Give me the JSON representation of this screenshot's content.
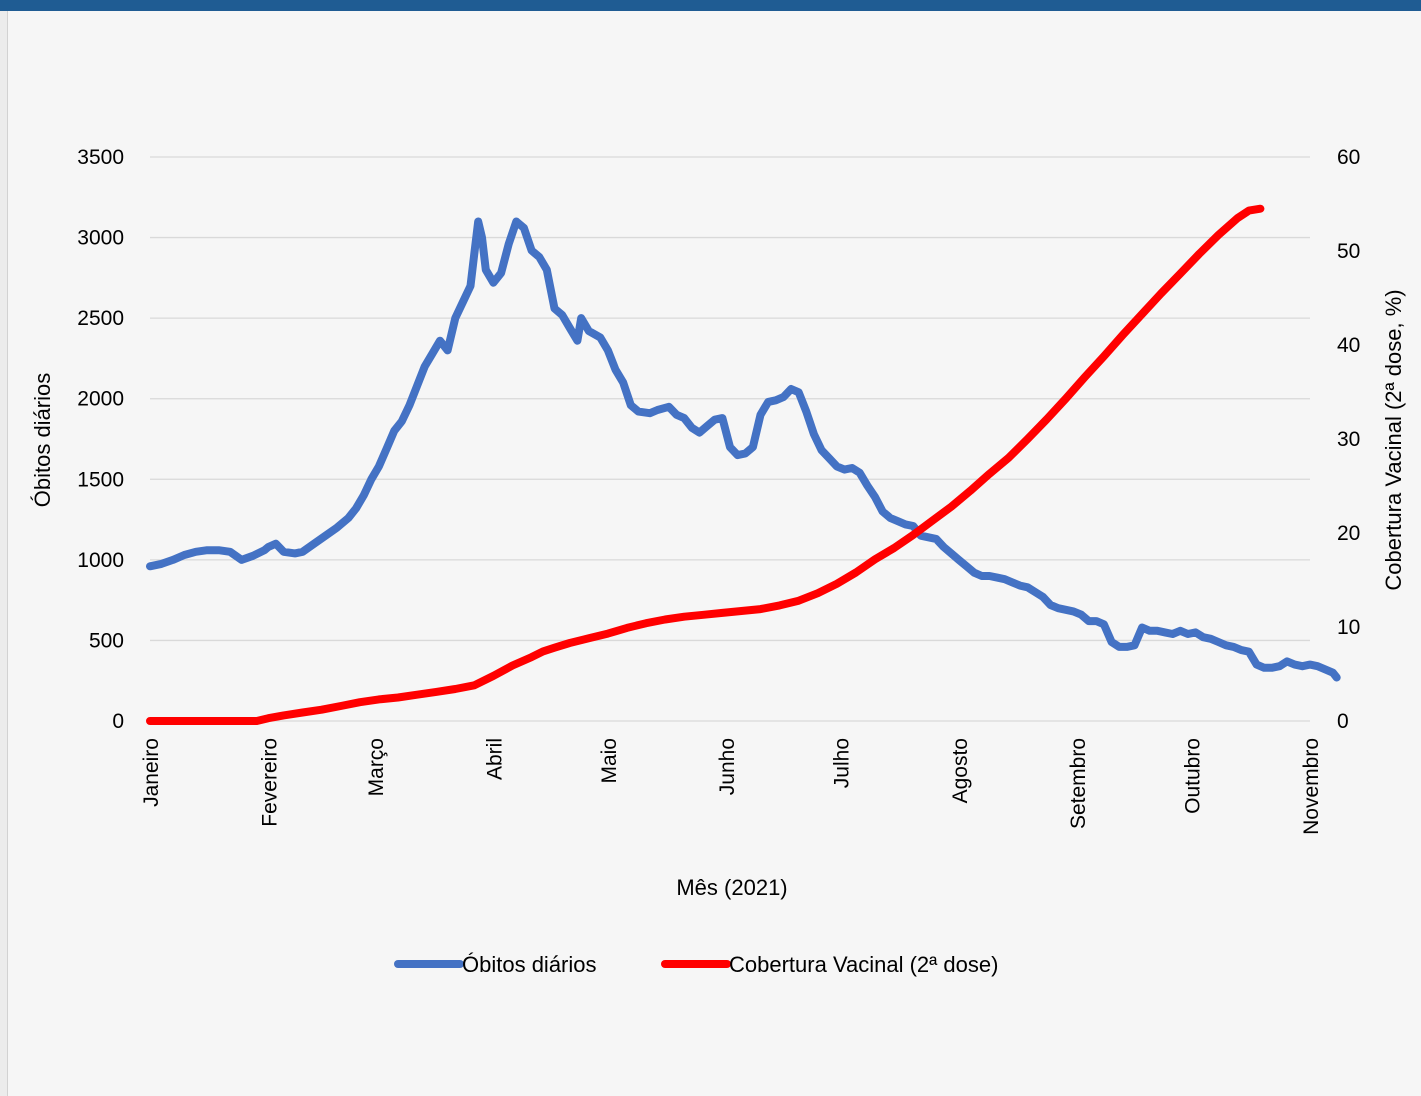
{
  "chart_data": {
    "type": "line",
    "title": "",
    "xlabel": "Mês (2021)",
    "ylabel": "Óbitos diários",
    "y2label": "Cobertura Vacinal (2ª dose, %)",
    "ylim": [
      0,
      3500
    ],
    "y2lim": [
      0,
      60
    ],
    "yticks": [
      0,
      500,
      1000,
      1500,
      2000,
      2500,
      3000,
      3500
    ],
    "y2ticks": [
      0,
      10,
      20,
      30,
      40,
      50,
      60
    ],
    "grid": true,
    "legend_position": "bottom",
    "months": [
      "Janeiro",
      "Fevereiro",
      "Março",
      "Abril",
      "Maio",
      "Junho",
      "Julho",
      "Agosto",
      "Setembro",
      "Outubro",
      "Novembro"
    ],
    "month_positions": [
      0,
      31,
      59,
      90,
      120,
      151,
      181,
      212,
      243,
      273,
      304
    ],
    "x_unit": "day of 2021 (0 = 1 January)",
    "series": [
      {
        "name": "Óbitos diários",
        "color": "#4472c4",
        "axis": "left",
        "points": [
          [
            0,
            960
          ],
          [
            3,
            975
          ],
          [
            6,
            1000
          ],
          [
            9,
            1030
          ],
          [
            12,
            1050
          ],
          [
            15,
            1060
          ],
          [
            18,
            1060
          ],
          [
            21,
            1050
          ],
          [
            24,
            1000
          ],
          [
            27,
            1025
          ],
          [
            30,
            1060
          ],
          [
            31,
            1080
          ],
          [
            33,
            1100
          ],
          [
            35,
            1050
          ],
          [
            38,
            1040
          ],
          [
            40,
            1050
          ],
          [
            43,
            1100
          ],
          [
            46,
            1150
          ],
          [
            49,
            1200
          ],
          [
            52,
            1260
          ],
          [
            54,
            1320
          ],
          [
            56,
            1400
          ],
          [
            58,
            1500
          ],
          [
            60,
            1580
          ],
          [
            62,
            1690
          ],
          [
            64,
            1800
          ],
          [
            66,
            1860
          ],
          [
            68,
            1960
          ],
          [
            70,
            2080
          ],
          [
            72,
            2200
          ],
          [
            74,
            2280
          ],
          [
            76,
            2360
          ],
          [
            78,
            2300
          ],
          [
            80,
            2500
          ],
          [
            82,
            2600
          ],
          [
            84,
            2700
          ],
          [
            85,
            2900
          ],
          [
            86,
            3100
          ],
          [
            87,
            3000
          ],
          [
            88,
            2800
          ],
          [
            90,
            2720
          ],
          [
            92,
            2780
          ],
          [
            94,
            2960
          ],
          [
            96,
            3100
          ],
          [
            98,
            3060
          ],
          [
            100,
            2920
          ],
          [
            102,
            2880
          ],
          [
            104,
            2800
          ],
          [
            106,
            2560
          ],
          [
            108,
            2520
          ],
          [
            110,
            2440
          ],
          [
            112,
            2360
          ],
          [
            113,
            2500
          ],
          [
            115,
            2420
          ],
          [
            118,
            2380
          ],
          [
            120,
            2300
          ],
          [
            122,
            2180
          ],
          [
            124,
            2100
          ],
          [
            126,
            1960
          ],
          [
            128,
            1920
          ],
          [
            131,
            1910
          ],
          [
            133,
            1930
          ],
          [
            136,
            1950
          ],
          [
            138,
            1900
          ],
          [
            140,
            1880
          ],
          [
            142,
            1820
          ],
          [
            144,
            1790
          ],
          [
            146,
            1830
          ],
          [
            148,
            1870
          ],
          [
            150,
            1880
          ],
          [
            152,
            1700
          ],
          [
            154,
            1650
          ],
          [
            156,
            1660
          ],
          [
            158,
            1700
          ],
          [
            160,
            1900
          ],
          [
            162,
            1980
          ],
          [
            164,
            1990
          ],
          [
            166,
            2010
          ],
          [
            168,
            2060
          ],
          [
            170,
            2040
          ],
          [
            172,
            1920
          ],
          [
            174,
            1780
          ],
          [
            176,
            1680
          ],
          [
            178,
            1630
          ],
          [
            180,
            1580
          ],
          [
            182,
            1560
          ],
          [
            184,
            1570
          ],
          [
            186,
            1540
          ],
          [
            188,
            1460
          ],
          [
            190,
            1390
          ],
          [
            192,
            1300
          ],
          [
            194,
            1260
          ],
          [
            196,
            1240
          ],
          [
            198,
            1220
          ],
          [
            200,
            1210
          ],
          [
            202,
            1150
          ],
          [
            204,
            1140
          ],
          [
            206,
            1130
          ],
          [
            208,
            1080
          ],
          [
            210,
            1040
          ],
          [
            212,
            1000
          ],
          [
            214,
            960
          ],
          [
            216,
            920
          ],
          [
            218,
            900
          ],
          [
            220,
            900
          ],
          [
            222,
            890
          ],
          [
            224,
            880
          ],
          [
            226,
            860
          ],
          [
            228,
            840
          ],
          [
            230,
            830
          ],
          [
            232,
            800
          ],
          [
            234,
            770
          ],
          [
            236,
            720
          ],
          [
            238,
            700
          ],
          [
            240,
            690
          ],
          [
            242,
            680
          ],
          [
            244,
            660
          ],
          [
            246,
            620
          ],
          [
            248,
            620
          ],
          [
            250,
            600
          ],
          [
            252,
            490
          ],
          [
            254,
            460
          ],
          [
            256,
            460
          ],
          [
            258,
            470
          ],
          [
            260,
            580
          ],
          [
            262,
            560
          ],
          [
            264,
            560
          ],
          [
            266,
            550
          ],
          [
            268,
            540
          ],
          [
            270,
            560
          ],
          [
            272,
            540
          ],
          [
            274,
            550
          ],
          [
            276,
            520
          ],
          [
            278,
            510
          ],
          [
            280,
            490
          ],
          [
            282,
            470
          ],
          [
            284,
            460
          ],
          [
            286,
            440
          ],
          [
            288,
            430
          ],
          [
            290,
            350
          ],
          [
            292,
            330
          ],
          [
            294,
            330
          ],
          [
            296,
            340
          ],
          [
            298,
            370
          ],
          [
            300,
            350
          ],
          [
            302,
            340
          ],
          [
            304,
            350
          ],
          [
            306,
            340
          ],
          [
            308,
            320
          ],
          [
            310,
            300
          ],
          [
            311,
            270
          ]
        ]
      },
      {
        "name": "Cobertura Vacinal (2ª dose)",
        "color": "#ff0000",
        "axis": "right",
        "points": [
          [
            0,
            0
          ],
          [
            20,
            0
          ],
          [
            28,
            0
          ],
          [
            31,
            0.3
          ],
          [
            35,
            0.6
          ],
          [
            40,
            0.9
          ],
          [
            45,
            1.2
          ],
          [
            50,
            1.6
          ],
          [
            55,
            2.0
          ],
          [
            60,
            2.3
          ],
          [
            65,
            2.5
          ],
          [
            70,
            2.8
          ],
          [
            75,
            3.1
          ],
          [
            80,
            3.4
          ],
          [
            85,
            3.8
          ],
          [
            90,
            4.8
          ],
          [
            95,
            5.9
          ],
          [
            100,
            6.8
          ],
          [
            103,
            7.4
          ],
          [
            106,
            7.8
          ],
          [
            110,
            8.3
          ],
          [
            115,
            8.8
          ],
          [
            120,
            9.3
          ],
          [
            125,
            9.9
          ],
          [
            130,
            10.4
          ],
          [
            135,
            10.8
          ],
          [
            140,
            11.1
          ],
          [
            145,
            11.3
          ],
          [
            150,
            11.5
          ],
          [
            155,
            11.7
          ],
          [
            160,
            11.9
          ],
          [
            165,
            12.3
          ],
          [
            170,
            12.8
          ],
          [
            175,
            13.6
          ],
          [
            180,
            14.6
          ],
          [
            185,
            15.8
          ],
          [
            190,
            17.2
          ],
          [
            195,
            18.4
          ],
          [
            200,
            19.8
          ],
          [
            205,
            21.3
          ],
          [
            210,
            22.8
          ],
          [
            215,
            24.5
          ],
          [
            220,
            26.3
          ],
          [
            225,
            28.0
          ],
          [
            230,
            30.0
          ],
          [
            235,
            32.1
          ],
          [
            240,
            34.3
          ],
          [
            245,
            36.6
          ],
          [
            250,
            38.8
          ],
          [
            255,
            41.1
          ],
          [
            260,
            43.3
          ],
          [
            265,
            45.5
          ],
          [
            270,
            47.6
          ],
          [
            275,
            49.7
          ],
          [
            280,
            51.7
          ],
          [
            285,
            53.5
          ],
          [
            288,
            54.3
          ],
          [
            291,
            54.5
          ]
        ]
      }
    ]
  }
}
